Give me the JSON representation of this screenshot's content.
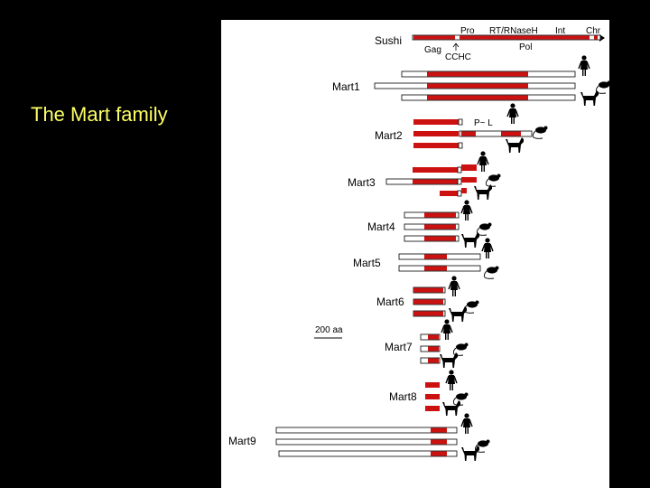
{
  "slide": {
    "title": "The Mart family"
  },
  "header": {
    "pro": "Pro",
    "rt": "RT/RNaseH",
    "int": "Int",
    "chr": "Chr",
    "gag": "Gag",
    "cchc": "CCHC",
    "pol": "Pol"
  },
  "labels": {
    "sushi": "Sushi",
    "mart1": "Mart1",
    "mart2": "Mart2",
    "mart3": "Mart3",
    "mart4": "Mart4",
    "mart5": "Mart5",
    "mart6": "Mart6",
    "mart7": "Mart7",
    "mart8": "Mart8",
    "mart9": "Mart9",
    "scale": "200 aa",
    "pp": "P~ L"
  },
  "colors": {
    "domain": "#cc1111",
    "frame": "#000000",
    "background": "#ffffff"
  },
  "icons": [
    "human-icon",
    "mouse-icon",
    "dog-icon",
    "arrow-left-icon"
  ]
}
